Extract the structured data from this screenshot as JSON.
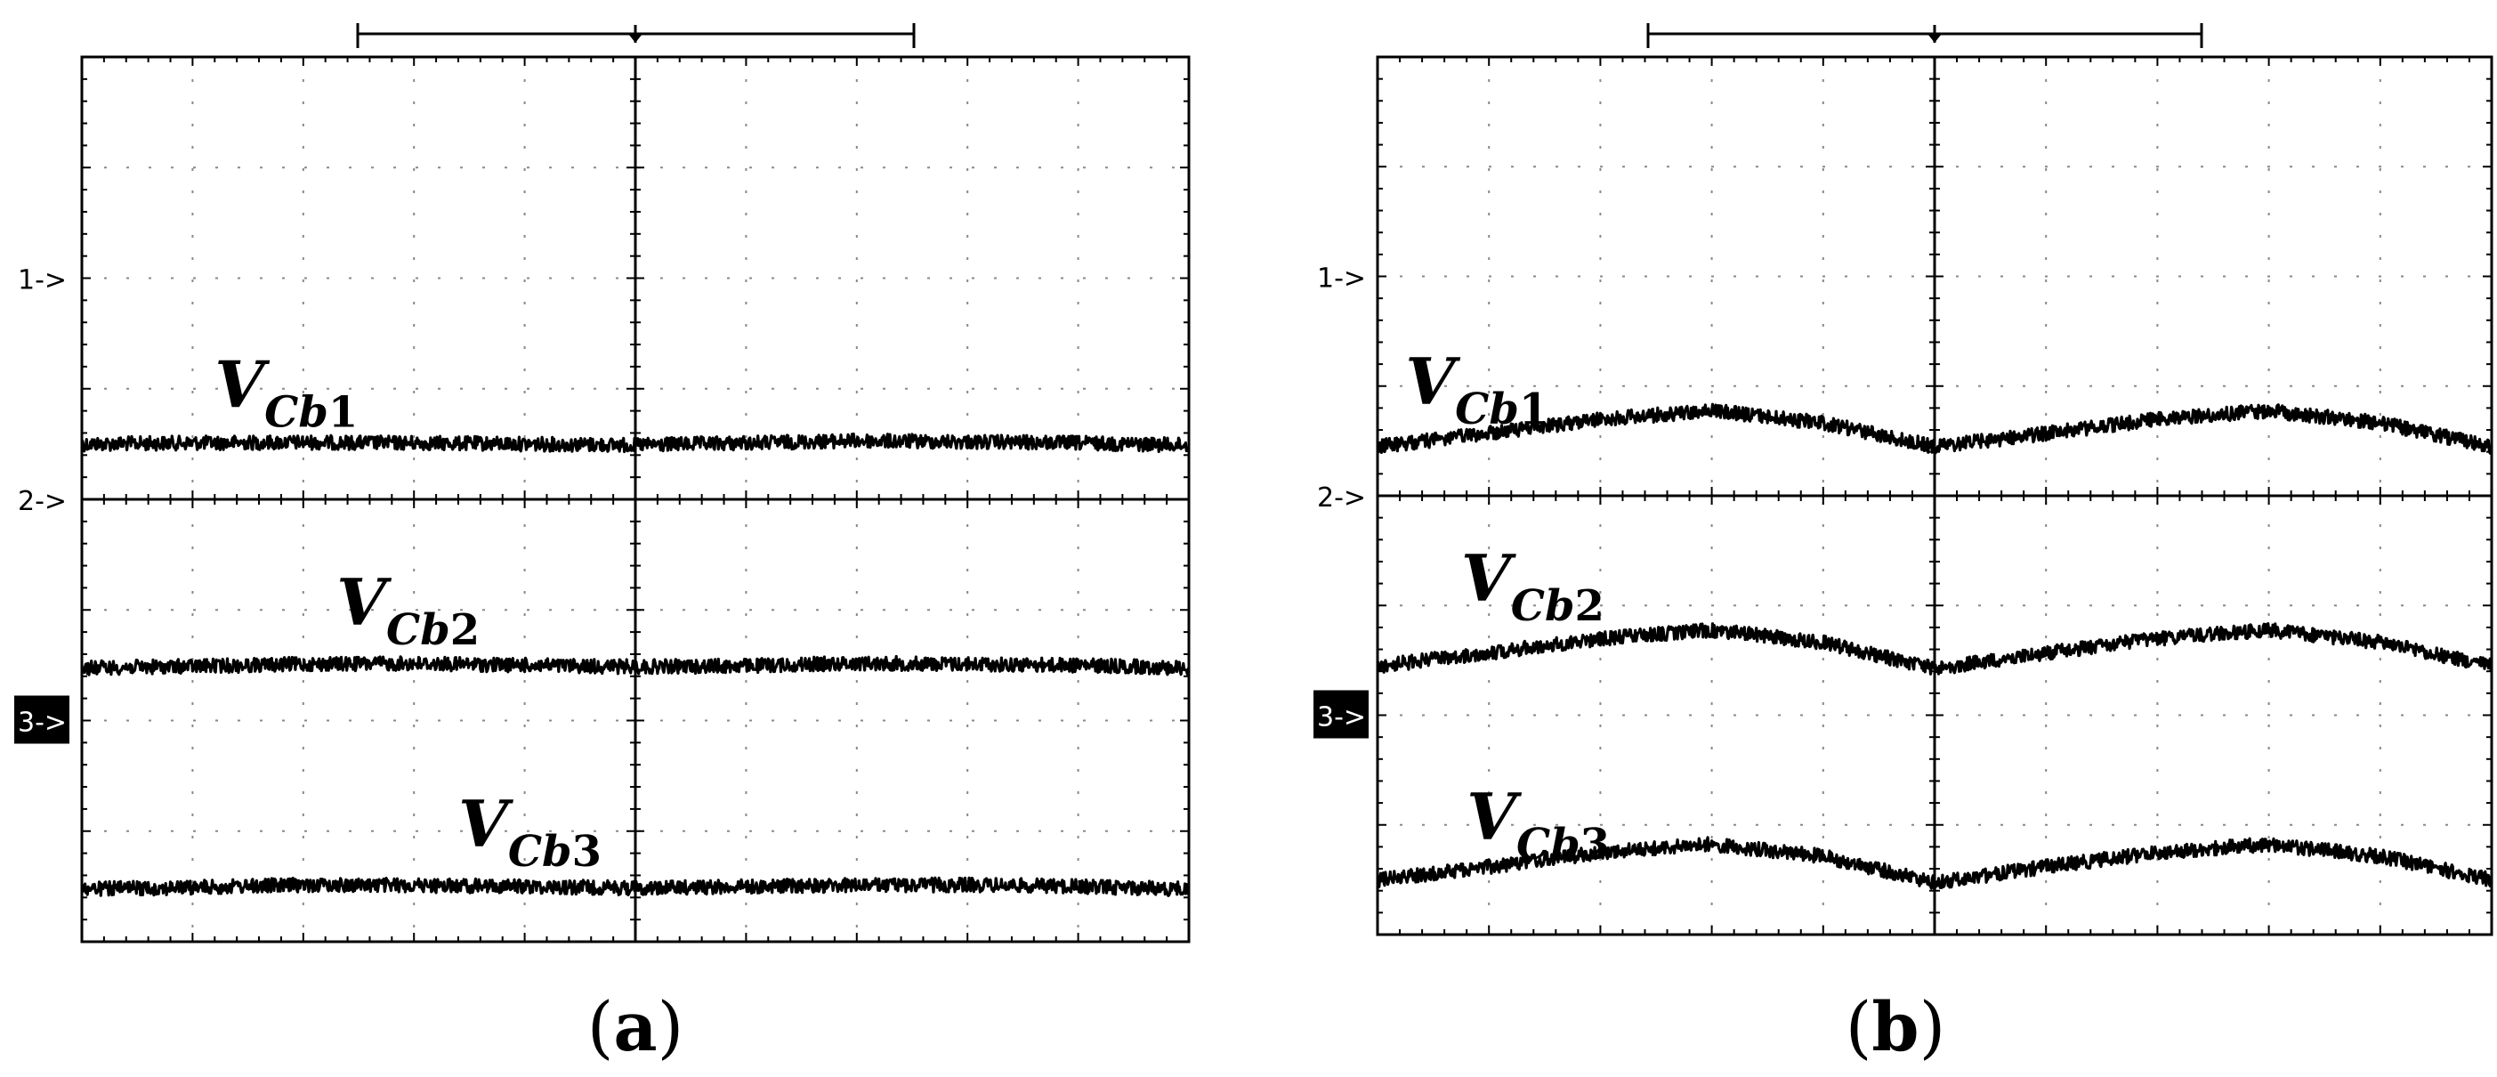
{
  "chart_data": [
    {
      "type": "line",
      "panel_label": "(a)",
      "x": [
        0,
        1,
        2,
        3,
        4,
        5,
        6,
        7,
        8,
        9,
        10
      ],
      "grid": true,
      "channel_markers": [
        "1->",
        "2->",
        "3->"
      ],
      "active_marker": "3->",
      "series": [
        {
          "name": "V",
          "subscript": "Cb1",
          "sub_base": "Cb",
          "sub_index": "1",
          "offset_div": 4.5,
          "values": [
            0,
            0.02,
            0.03,
            0.02,
            0,
            -0.02,
            0.02,
            0.06,
            0.04,
            0.02,
            -0.02
          ]
        },
        {
          "name": "V",
          "subscript": "Cb2",
          "sub_base": "Cb",
          "sub_index": "2",
          "offset_div": 2.5,
          "values": [
            -0.05,
            -0.02,
            0.02,
            0.03,
            0,
            -0.03,
            -0.01,
            0.04,
            0.02,
            0,
            -0.05
          ]
        },
        {
          "name": "V",
          "subscript": "Cb3",
          "sub_base": "Cb",
          "sub_index": "3",
          "offset_div": 0.5,
          "values": [
            -0.05,
            -0.02,
            0.03,
            0.02,
            0,
            -0.03,
            0,
            0.02,
            0.03,
            0,
            -0.05
          ]
        }
      ]
    },
    {
      "type": "line",
      "panel_label": "(b)",
      "x": [
        0,
        1,
        2,
        3,
        4,
        5,
        6,
        7,
        8,
        9,
        10
      ],
      "grid": true,
      "channel_markers": [
        "1->",
        "2->",
        "3->"
      ],
      "active_marker": "3->",
      "series": [
        {
          "name": "V",
          "subscript": "Cb1",
          "sub_base": "Cb",
          "sub_index": "1",
          "offset_div": 4.4,
          "values": [
            0.1,
            0.35,
            0.62,
            0.78,
            0.55,
            0.1,
            0.35,
            0.62,
            0.78,
            0.55,
            0.1
          ]
        },
        {
          "name": "V",
          "subscript": "Cb2",
          "sub_base": "Cb",
          "sub_index": "2",
          "offset_div": 2.4,
          "values": [
            0.1,
            0.35,
            0.62,
            0.78,
            0.55,
            0.05,
            0.35,
            0.62,
            0.78,
            0.55,
            0.1
          ]
        },
        {
          "name": "V",
          "subscript": "Cb3",
          "sub_base": "Cb",
          "sub_index": "3",
          "offset_div": 0.45,
          "values": [
            0.1,
            0.35,
            0.62,
            0.78,
            0.55,
            0.05,
            0.35,
            0.62,
            0.78,
            0.55,
            0.1
          ]
        }
      ]
    }
  ]
}
